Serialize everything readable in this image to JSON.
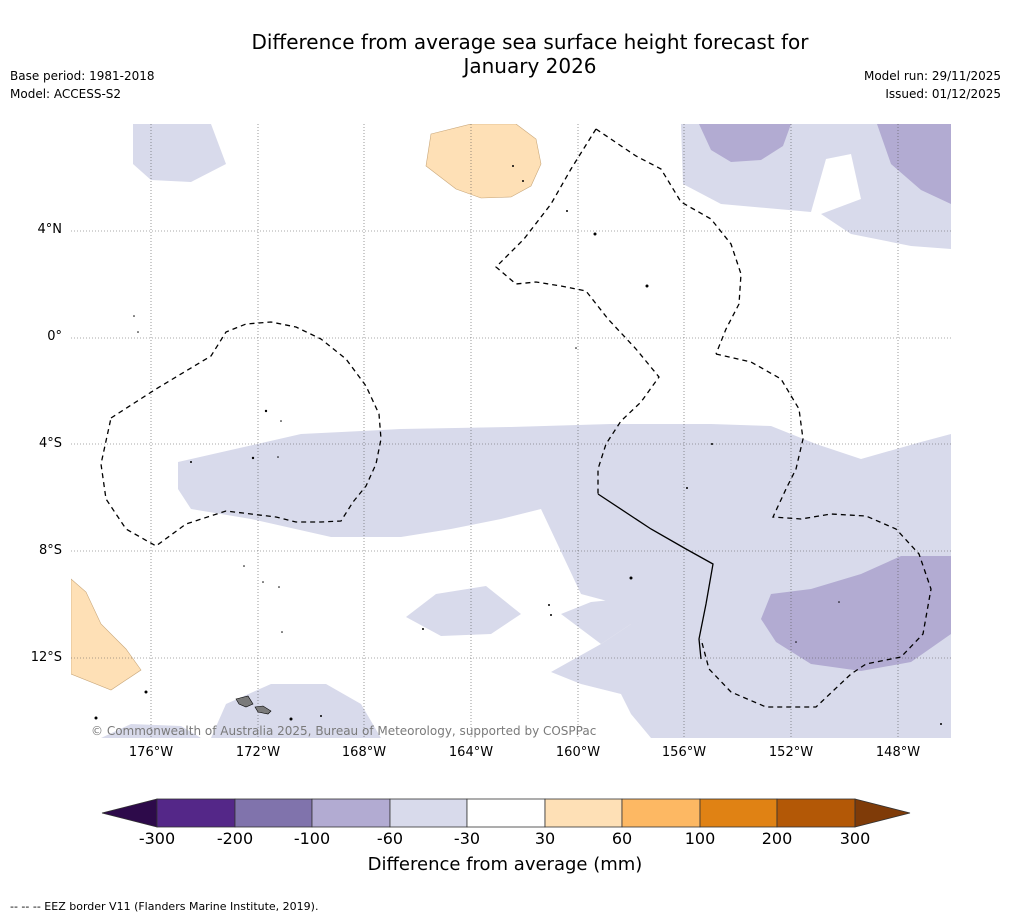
{
  "title_line1": "Difference from average sea surface height forecast for",
  "title_line2": "January 2026",
  "base_period": "Base period: 1981-2018",
  "model": "Model: ACCESS-S2",
  "model_run": "Model run: 29/11/2025",
  "issued": "Issued: 01/12/2025",
  "copyright": "© Commonwealth of Australia 2025, Bureau of Meteorology, supported by COSPPac",
  "latitudes": [
    "4°N",
    "0°",
    "4°S",
    "8°S",
    "12°S"
  ],
  "longitudes": [
    "176°W",
    "172°W",
    "168°W",
    "164°W",
    "160°W",
    "156°W",
    "152°W",
    "148°W"
  ],
  "colorbar": {
    "title": "Difference from average (mm)",
    "ticks": [
      "-300",
      "-200",
      "-100",
      "-60",
      "-30",
      "30",
      "60",
      "100",
      "200",
      "300"
    ],
    "colors": {
      "under": "#2d0a4a",
      "c1": "#542788",
      "c2": "#8073ac",
      "c3": "#b2abd2",
      "c4": "#d8daeb",
      "c5": "#ffffff",
      "c6": "#fee0b6",
      "c7": "#fdb863",
      "c8": "#e08214",
      "c9": "#b35806",
      "over": "#7f3b08"
    }
  },
  "footer": "--  --  -- EEZ border V11 (Flanders Marine Institute, 2019)."
}
